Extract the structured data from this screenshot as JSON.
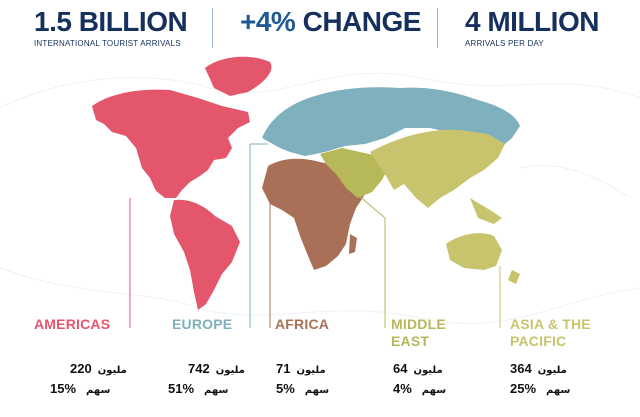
{
  "header": {
    "stat1": {
      "value": "1.5 BILLION",
      "caption": "INTERNATIONAL TOURIST ARRIVALS"
    },
    "stat2": {
      "value_accent": "+4%",
      "value_rest": " CHANGE"
    },
    "stat3": {
      "value": "4 MILLION",
      "caption": "ARRIVALS PER DAY"
    }
  },
  "colors": {
    "americas": "#e4566c",
    "europe": "#7fb0be",
    "africa": "#a87157",
    "middle_east": "#b7b85a",
    "asia_pacific": "#c8c46e",
    "text_dark": "#15305c"
  },
  "regions": [
    {
      "key": "americas",
      "name": "AMERICAS",
      "arrivals": "220",
      "arrivals_unit": "مليون",
      "share": "15%",
      "share_unit": "سهم"
    },
    {
      "key": "europe",
      "name": "EUROPE",
      "arrivals": "742",
      "arrivals_unit": "مليون",
      "share": "51%",
      "share_unit": "سهم"
    },
    {
      "key": "africa",
      "name": "AFRICA",
      "arrivals": "71",
      "arrivals_unit": "مليون",
      "share": "5%",
      "share_unit": "سهم"
    },
    {
      "key": "middle_east",
      "name_line1": "MIDDLE",
      "name_line2": "EAST",
      "arrivals": "64",
      "arrivals_unit": "مليون",
      "share": "4%",
      "share_unit": "سهم"
    },
    {
      "key": "asia_pacific",
      "name_line1": "ASIA & THE",
      "name_line2": "PACIFIC",
      "arrivals": "364",
      "arrivals_unit": "مليون",
      "share": "25%",
      "share_unit": "سهم"
    }
  ]
}
